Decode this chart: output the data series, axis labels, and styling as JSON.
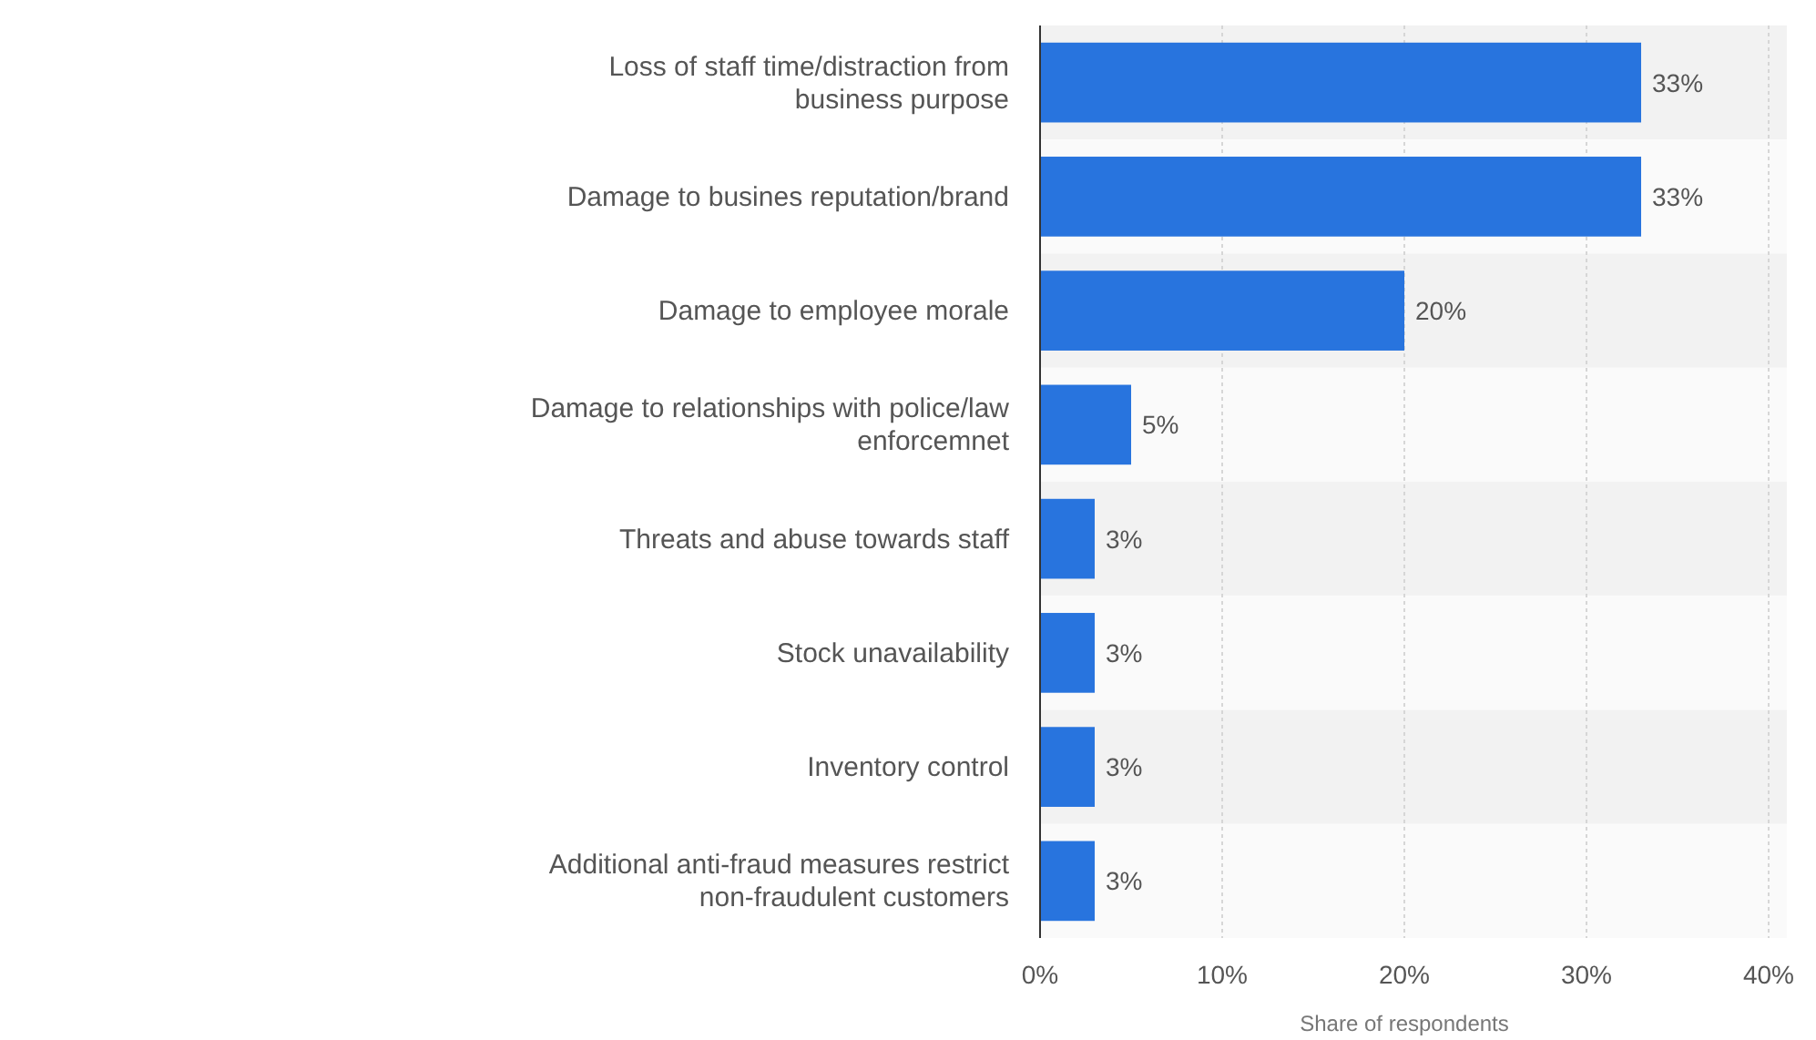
{
  "chart_data": {
    "type": "bar",
    "orientation": "horizontal",
    "xlabel": "Share of respondents",
    "categories": [
      "Loss of staff time/distraction from business purpose",
      "Damage to busines reputation/brand",
      "Damage to employee morale",
      "Damage to relationships with police/law enforcemnet",
      "Threats and abuse towards staff",
      "Stock unavailability",
      "Inventory control",
      "Additional anti-fraud measures restrict non-fraudulent customers"
    ],
    "values": [
      33,
      33,
      20,
      5,
      3,
      3,
      3,
      3
    ],
    "value_labels": [
      "33%",
      "33%",
      "20%",
      "5%",
      "3%",
      "3%",
      "3%",
      "3%"
    ],
    "color": "#2874de",
    "xlim": [
      0,
      40
    ],
    "xticks": [
      {
        "value": 0,
        "label": "0%"
      },
      {
        "value": 10,
        "label": "10%"
      },
      {
        "value": 20,
        "label": "20%"
      },
      {
        "value": 30,
        "label": "30%"
      },
      {
        "value": 40,
        "label": "40%"
      }
    ],
    "grid": "x"
  }
}
